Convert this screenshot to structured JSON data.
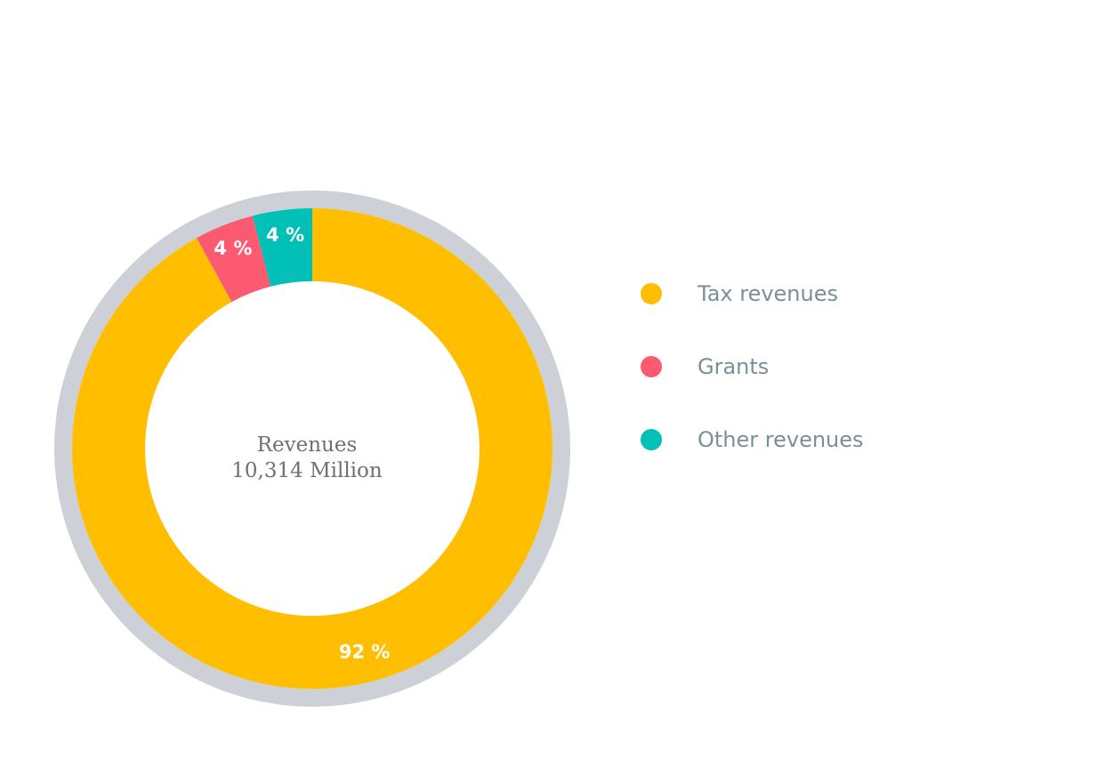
{
  "chart_data": {
    "type": "pie",
    "variant": "donut",
    "center_title": "Revenues",
    "center_value": "10,314 Million",
    "categories": [
      "Tax revenues",
      "Grants",
      "Other revenues"
    ],
    "values": [
      92,
      4,
      4
    ],
    "value_labels": [
      "92 %",
      "4 %",
      "4 %"
    ],
    "colors": [
      "#ffbf00",
      "#fc5a71",
      "#00c0b8"
    ],
    "ring_color": "#cdd1d7",
    "legend_position": "right"
  }
}
